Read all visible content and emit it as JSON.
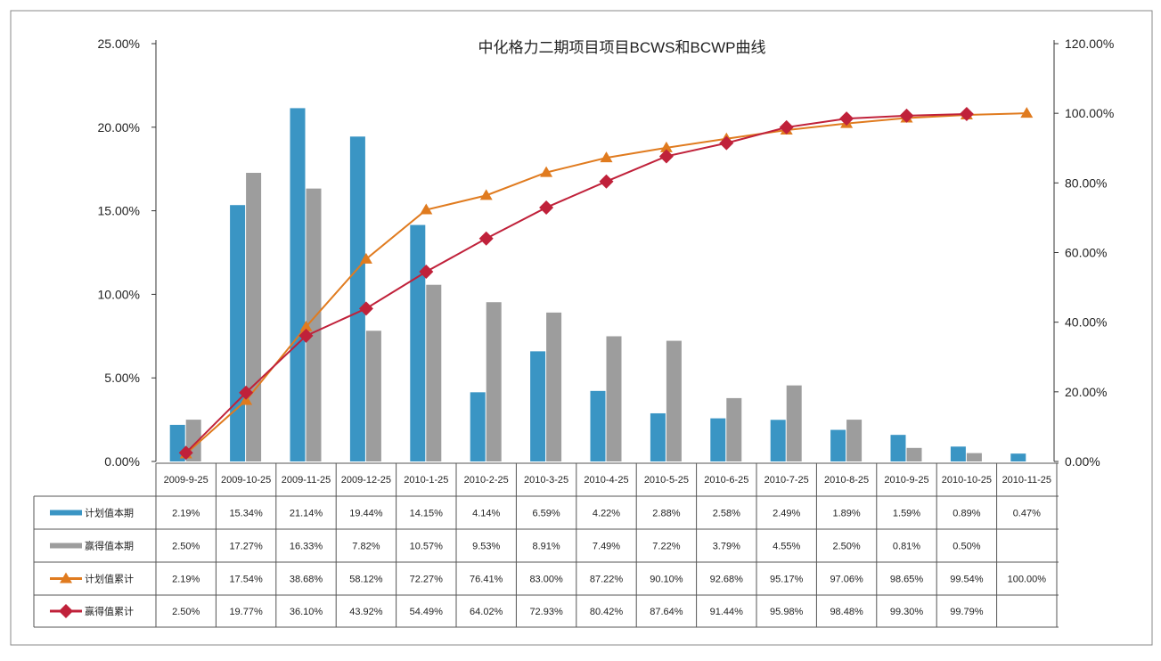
{
  "chart_data": {
    "type": "bar",
    "title": "中化格力二期项目项目BCWS和BCWP曲线",
    "categories": [
      "2009-9-25",
      "2009-10-25",
      "2009-11-25",
      "2009-12-25",
      "2010-1-25",
      "2010-2-25",
      "2010-3-25",
      "2010-4-25",
      "2010-5-25",
      "2010-6-25",
      "2010-7-25",
      "2010-8-25",
      "2010-9-25",
      "2010-10-25",
      "2010-11-25"
    ],
    "left_axis": {
      "ylim": [
        0,
        25
      ],
      "ticks": [
        "0.00%",
        "5.00%",
        "10.00%",
        "15.00%",
        "20.00%",
        "25.00%"
      ]
    },
    "right_axis": {
      "ylim": [
        0,
        120
      ],
      "ticks": [
        "0.00%",
        "20.00%",
        "40.00%",
        "60.00%",
        "80.00%",
        "100.00%",
        "120.00%"
      ]
    },
    "grid": false,
    "legend": "table-left",
    "series": [
      {
        "name": "计划值本期",
        "type": "bar",
        "axis": "left",
        "color": "#3a95c4",
        "values": [
          2.19,
          15.34,
          21.14,
          19.44,
          14.15,
          4.14,
          6.59,
          4.22,
          2.88,
          2.58,
          2.49,
          1.89,
          1.59,
          0.89,
          0.47
        ],
        "labels": [
          "2.19%",
          "15.34%",
          "21.14%",
          "19.44%",
          "14.15%",
          "4.14%",
          "6.59%",
          "4.22%",
          "2.88%",
          "2.58%",
          "2.49%",
          "1.89%",
          "1.59%",
          "0.89%",
          "0.47%"
        ]
      },
      {
        "name": "赢得值本期",
        "type": "bar",
        "axis": "left",
        "color": "#9d9d9d",
        "values": [
          2.5,
          17.27,
          16.33,
          7.82,
          10.57,
          9.53,
          8.91,
          7.49,
          7.22,
          3.79,
          4.55,
          2.5,
          0.81,
          0.5,
          null
        ],
        "labels": [
          "2.50%",
          "17.27%",
          "16.33%",
          "7.82%",
          "10.57%",
          "9.53%",
          "8.91%",
          "7.49%",
          "7.22%",
          "3.79%",
          "4.55%",
          "2.50%",
          "0.81%",
          "0.50%",
          ""
        ]
      },
      {
        "name": "计划值累计",
        "type": "line",
        "marker": "triangle",
        "axis": "right",
        "color": "#e07b1f",
        "values": [
          2.19,
          17.54,
          38.68,
          58.12,
          72.27,
          76.41,
          83.0,
          87.22,
          90.1,
          92.68,
          95.17,
          97.06,
          98.65,
          99.54,
          100.0
        ],
        "labels": [
          "2.19%",
          "17.54%",
          "38.68%",
          "58.12%",
          "72.27%",
          "76.41%",
          "83.00%",
          "87.22%",
          "90.10%",
          "92.68%",
          "95.17%",
          "97.06%",
          "98.65%",
          "99.54%",
          "100.00%"
        ]
      },
      {
        "name": "赢得值累计",
        "type": "line",
        "marker": "diamond",
        "axis": "right",
        "color": "#c0213a",
        "values": [
          2.5,
          19.77,
          36.1,
          43.92,
          54.49,
          64.02,
          72.93,
          80.42,
          87.64,
          91.44,
          95.98,
          98.48,
          99.3,
          99.79,
          null
        ],
        "labels": [
          "2.50%",
          "19.77%",
          "36.10%",
          "43.92%",
          "54.49%",
          "64.02%",
          "72.93%",
          "80.42%",
          "87.64%",
          "91.44%",
          "95.98%",
          "98.48%",
          "99.30%",
          "99.79%",
          ""
        ]
      }
    ]
  }
}
